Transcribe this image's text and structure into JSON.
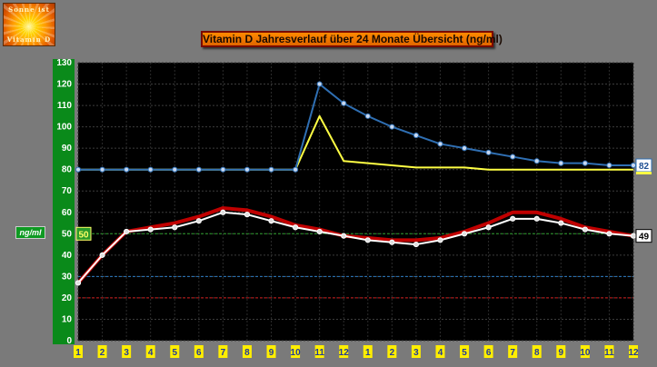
{
  "logo": {
    "line1": "Sonne ist",
    "line2": "Vitamin D"
  },
  "title": "Vitamin D  Jahresverlauf  über 24 Monate Übersicht (ng/ml)",
  "unit_label": "ng/ml",
  "colors": {
    "blue": "#2f6fb3",
    "yellow": "#ffff44",
    "white": "#ffffff",
    "red": "#c00000",
    "axis_green": "#0a8a1a",
    "month_yellow": "#ffee00",
    "ref_50": "#2a9a2a",
    "ref_30": "#2a7ac0",
    "ref_20": "#cc1a1a"
  },
  "chart_data": {
    "type": "line",
    "title": "Vitamin D  Jahresverlauf  über 24 Monate Übersicht (ng/ml)",
    "ylabel": "ng/ml",
    "ylim": [
      0,
      130
    ],
    "yticks": [
      "0",
      "10",
      "20",
      "30",
      "40",
      "50",
      "60",
      "70",
      "80",
      "90",
      "100",
      "110",
      "120",
      "130"
    ],
    "categories": [
      "1",
      "2",
      "3",
      "4",
      "5",
      "6",
      "7",
      "8",
      "9",
      "10",
      "11",
      "12",
      "1",
      "2",
      "3",
      "4",
      "5",
      "6",
      "7",
      "8",
      "9",
      "10",
      "11",
      "12"
    ],
    "grid": true,
    "reference_lines": [
      {
        "value": 50,
        "color": "green",
        "label": "50"
      },
      {
        "value": 30,
        "color": "blue"
      },
      {
        "value": 20,
        "color": "red"
      }
    ],
    "series": [
      {
        "color": "blue",
        "end_label": "82",
        "values": [
          80,
          80,
          80,
          80,
          80,
          80,
          80,
          80,
          80,
          80,
          120,
          111,
          105,
          100,
          96,
          92,
          90,
          88,
          86,
          84,
          83,
          83,
          82,
          82
        ]
      },
      {
        "color": "yellow",
        "values": [
          80,
          80,
          80,
          80,
          80,
          80,
          80,
          80,
          80,
          80,
          105,
          84,
          83,
          82,
          81,
          81,
          81,
          80,
          80,
          80,
          80,
          80,
          80,
          80
        ]
      },
      {
        "color": "red",
        "values": [
          27,
          40,
          51,
          53,
          55,
          58,
          62,
          61,
          58,
          54,
          52,
          49,
          48,
          47,
          47,
          48,
          51,
          55,
          60,
          60,
          57,
          53,
          51,
          49
        ]
      },
      {
        "color": "white",
        "end_label": "49",
        "values": [
          27,
          40,
          51,
          52,
          53,
          56,
          60,
          59,
          56,
          53,
          51,
          49,
          47,
          46,
          45,
          47,
          50,
          53,
          57,
          57,
          55,
          52,
          50,
          49
        ]
      }
    ]
  }
}
